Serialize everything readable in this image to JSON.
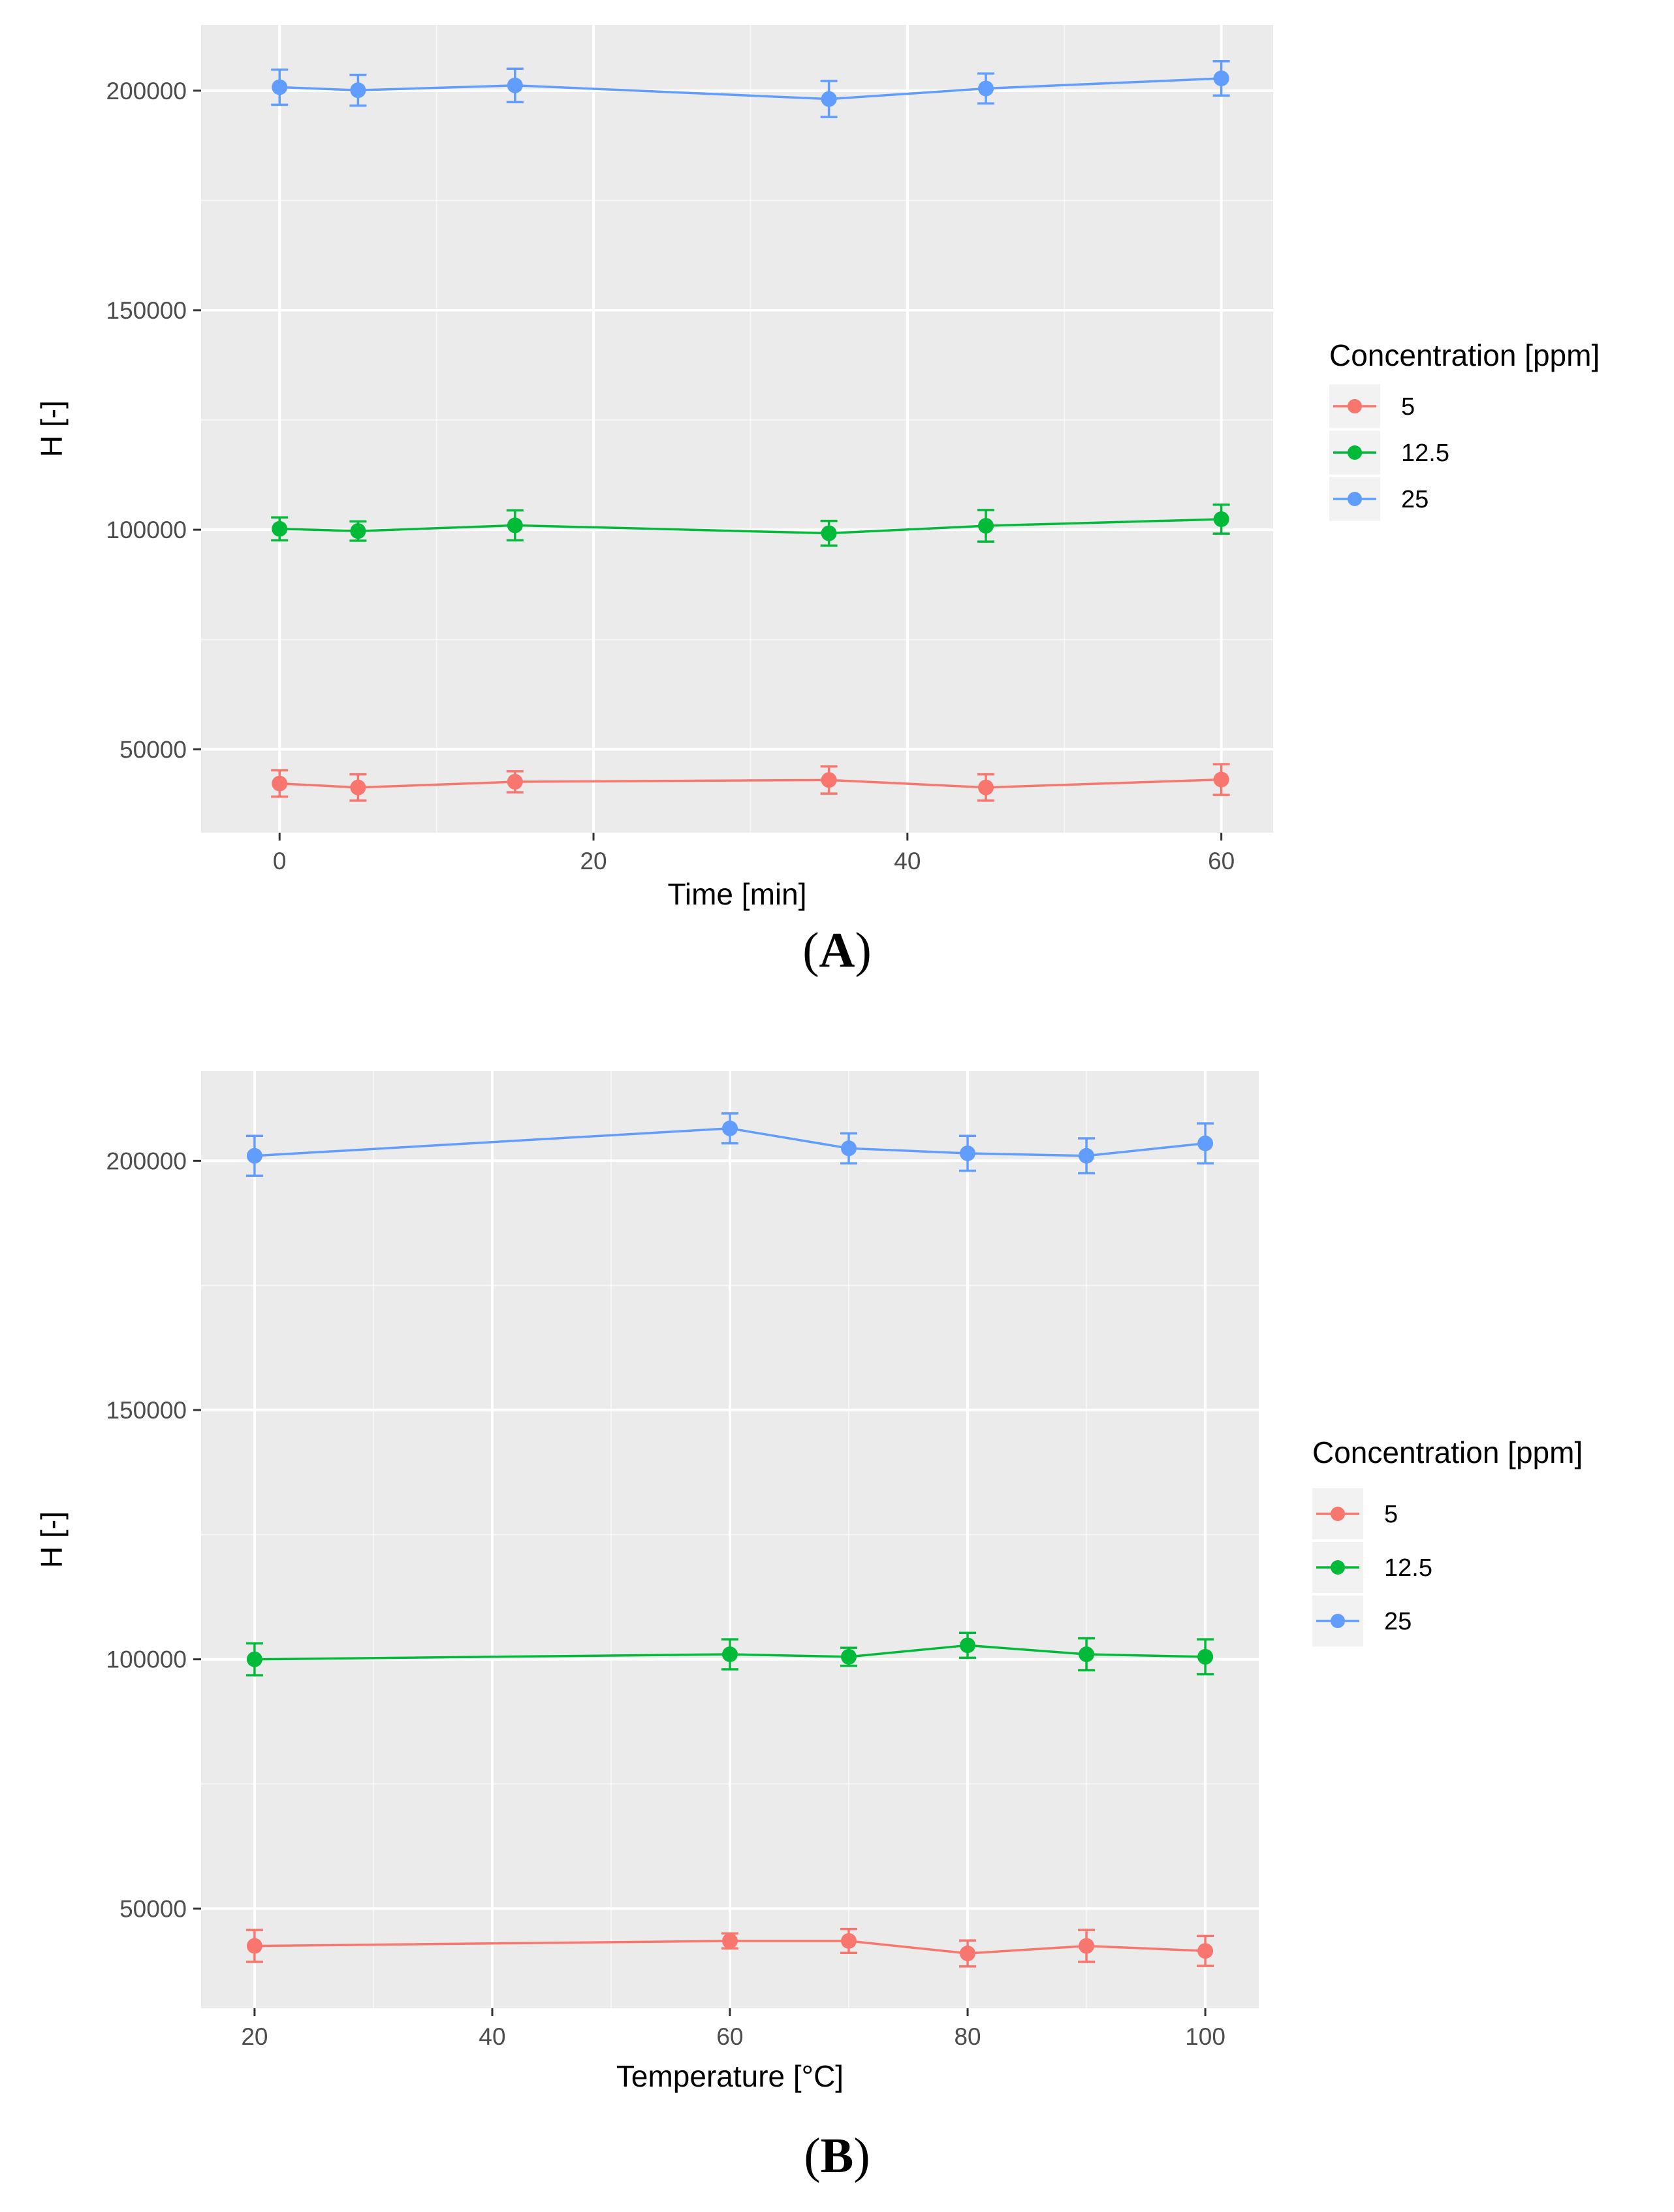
{
  "figure": {
    "panels": [
      {
        "caption_letter": "A"
      },
      {
        "caption_letter": "B"
      }
    ]
  },
  "colors": {
    "panel_bg": "#EBEBEB",
    "grid": "#FFFFFF",
    "series": [
      "#F8766D",
      "#00BA38",
      "#619CFF"
    ]
  },
  "chart_data": [
    {
      "type": "line",
      "xlabel": "Time [min]",
      "ylabel": "H [-]",
      "xlim": [
        -5,
        63.3
      ],
      "ylim": [
        31000,
        215000
      ],
      "x_major_ticks": [
        0,
        20,
        40,
        60
      ],
      "x_minor_ticks": [
        10,
        30,
        50
      ],
      "x_tick_labels": [
        "0",
        "20",
        "40",
        "60"
      ],
      "y_major_ticks": [
        50000,
        100000,
        150000,
        200000
      ],
      "y_minor_ticks": [
        75000,
        125000,
        175000
      ],
      "y_tick_labels": [
        "50000",
        "100000",
        "150000",
        "200000"
      ],
      "legend_title": "Concentration [ppm]",
      "legend_placement": "right",
      "series": [
        {
          "name": "5",
          "x": [
            0,
            5,
            15,
            35,
            45,
            60
          ],
          "y": [
            42200,
            41300,
            42600,
            43000,
            41300,
            43100
          ],
          "err": [
            3000,
            3000,
            2400,
            3100,
            3000,
            3500
          ]
        },
        {
          "name": "12.5",
          "x": [
            0,
            5,
            15,
            35,
            45,
            60
          ],
          "y": [
            100200,
            99700,
            101000,
            99200,
            100900,
            102400
          ],
          "err": [
            2600,
            2200,
            3400,
            2800,
            3600,
            3300
          ]
        },
        {
          "name": "25",
          "x": [
            0,
            5,
            15,
            35,
            45,
            60
          ],
          "y": [
            200800,
            200100,
            201200,
            198100,
            200500,
            202800
          ],
          "err": [
            4000,
            3500,
            3800,
            4100,
            3400,
            3900
          ]
        }
      ]
    },
    {
      "type": "line",
      "xlabel": "Temperature [°C]",
      "ylabel": "H [-]",
      "xlim": [
        15.5,
        104.5
      ],
      "ylim": [
        30000,
        218000
      ],
      "x_major_ticks": [
        20,
        40,
        60,
        80,
        100
      ],
      "x_minor_ticks": [
        30,
        50,
        70,
        90
      ],
      "x_tick_labels": [
        "20",
        "40",
        "60",
        "80",
        "100"
      ],
      "y_major_ticks": [
        50000,
        100000,
        150000,
        200000
      ],
      "y_minor_ticks": [
        75000,
        125000,
        175000
      ],
      "y_tick_labels": [
        "50000",
        "100000",
        "150000",
        "200000"
      ],
      "legend_title": "Concentration [ppm]",
      "legend_placement": "right",
      "series": [
        {
          "name": "5",
          "x": [
            20,
            60,
            70,
            80,
            90,
            100
          ],
          "y": [
            42500,
            43500,
            43500,
            41000,
            42500,
            41500
          ],
          "err": [
            3200,
            1500,
            2400,
            2600,
            3200,
            3000
          ]
        },
        {
          "name": "12.5",
          "x": [
            20,
            60,
            70,
            80,
            90,
            100
          ],
          "y": [
            100000,
            101000,
            100500,
            102800,
            101000,
            100500
          ],
          "err": [
            3200,
            3000,
            1800,
            2500,
            3200,
            3500
          ]
        },
        {
          "name": "25",
          "x": [
            20,
            60,
            70,
            80,
            90,
            100
          ],
          "y": [
            201000,
            206500,
            202500,
            201500,
            201000,
            203500
          ],
          "err": [
            4000,
            3000,
            3000,
            3500,
            3500,
            4000
          ]
        }
      ]
    }
  ]
}
